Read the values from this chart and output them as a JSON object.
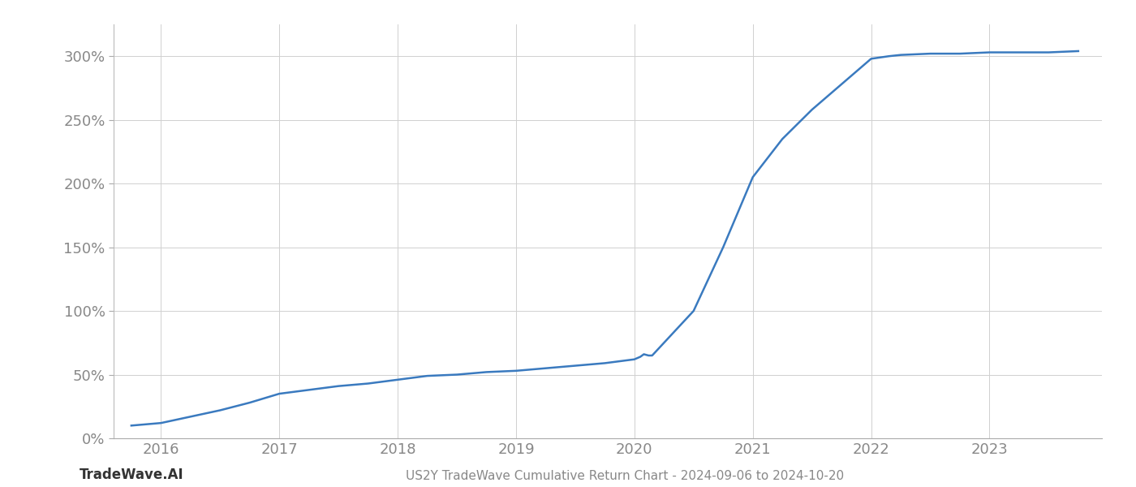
{
  "title": "US2Y TradeWave Cumulative Return Chart - 2024-09-06 to 2024-10-20",
  "watermark": "TradeWave.AI",
  "line_color": "#3a7abf",
  "background_color": "#ffffff",
  "grid_color": "#d0d0d0",
  "x_values": [
    2015.75,
    2016.0,
    2016.2,
    2016.5,
    2016.75,
    2017.0,
    2017.25,
    2017.5,
    2017.75,
    2018.0,
    2018.25,
    2018.5,
    2018.75,
    2019.0,
    2019.25,
    2019.5,
    2019.75,
    2020.0,
    2020.05,
    2020.08,
    2020.12,
    2020.15,
    2020.5,
    2020.75,
    2021.0,
    2021.25,
    2021.5,
    2021.75,
    2022.0,
    2022.15,
    2022.25,
    2022.5,
    2022.75,
    2023.0,
    2023.25,
    2023.5,
    2023.75
  ],
  "y_values": [
    10,
    12,
    16,
    22,
    28,
    35,
    38,
    41,
    43,
    46,
    49,
    50,
    52,
    53,
    55,
    57,
    59,
    62,
    64,
    66,
    65,
    65,
    100,
    150,
    205,
    235,
    258,
    278,
    298,
    300,
    301,
    302,
    302,
    303,
    303,
    303,
    304
  ],
  "xlim": [
    2015.6,
    2023.95
  ],
  "ylim": [
    0,
    325
  ],
  "yticks": [
    0,
    50,
    100,
    150,
    200,
    250,
    300
  ],
  "xticks": [
    2016,
    2017,
    2018,
    2019,
    2020,
    2021,
    2022,
    2023
  ],
  "tick_label_color": "#888888",
  "tick_fontsize": 13,
  "title_fontsize": 11,
  "watermark_fontsize": 12,
  "line_width": 1.8
}
